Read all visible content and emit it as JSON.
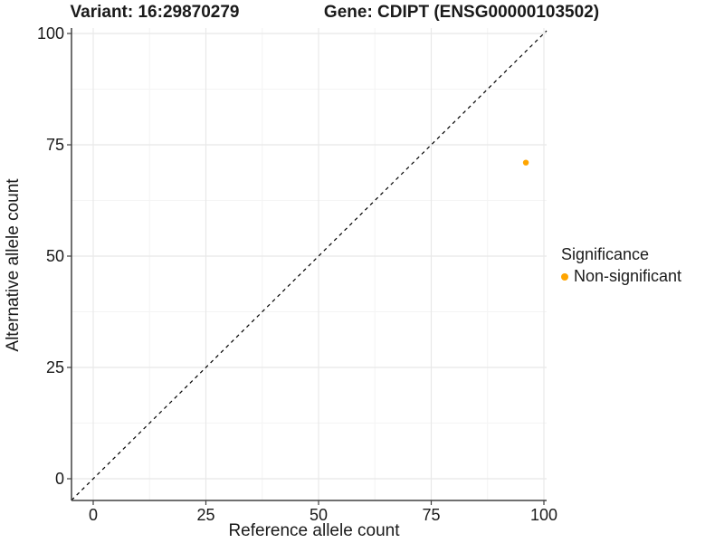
{
  "titles": {
    "variant": "Variant: 16:29870279",
    "gene": "Gene: CDIPT (ENSG00000103502)"
  },
  "axes": {
    "x_label": "Reference allele count",
    "y_label": "Alternative allele count"
  },
  "legend": {
    "title": "Significance",
    "items": [
      {
        "label": "Non-significant",
        "color": "#FFA500"
      }
    ]
  },
  "colors": {
    "point": "#FFA500",
    "grid_major": "#E8E8E8",
    "grid_minor": "#F4F4F4",
    "axis_line": "#404040",
    "tick_text": "#1A1A1A",
    "reference_line": "#000000",
    "background": "#FFFFFF"
  },
  "chart_data": {
    "type": "scatter",
    "title_left": "Variant: 16:29870279",
    "title_right": "Gene: CDIPT (ENSG00000103502)",
    "xlabel": "Reference allele count",
    "ylabel": "Alternative allele count",
    "xlim": [
      -5,
      101
    ],
    "ylim": [
      -5,
      101
    ],
    "xticks": [
      0,
      25,
      50,
      75,
      100
    ],
    "yticks": [
      0,
      25,
      50,
      75,
      100
    ],
    "minor_ticks": [
      12.5,
      37.5,
      62.5,
      87.5
    ],
    "grid": "major+minor",
    "reference_line": {
      "type": "identity-diagonal",
      "style": "dashed",
      "color": "#000000"
    },
    "legend_position": "right",
    "series": [
      {
        "name": "Non-significant",
        "color": "#FFA500",
        "points": [
          {
            "x": 96,
            "y": 71
          }
        ]
      }
    ]
  }
}
